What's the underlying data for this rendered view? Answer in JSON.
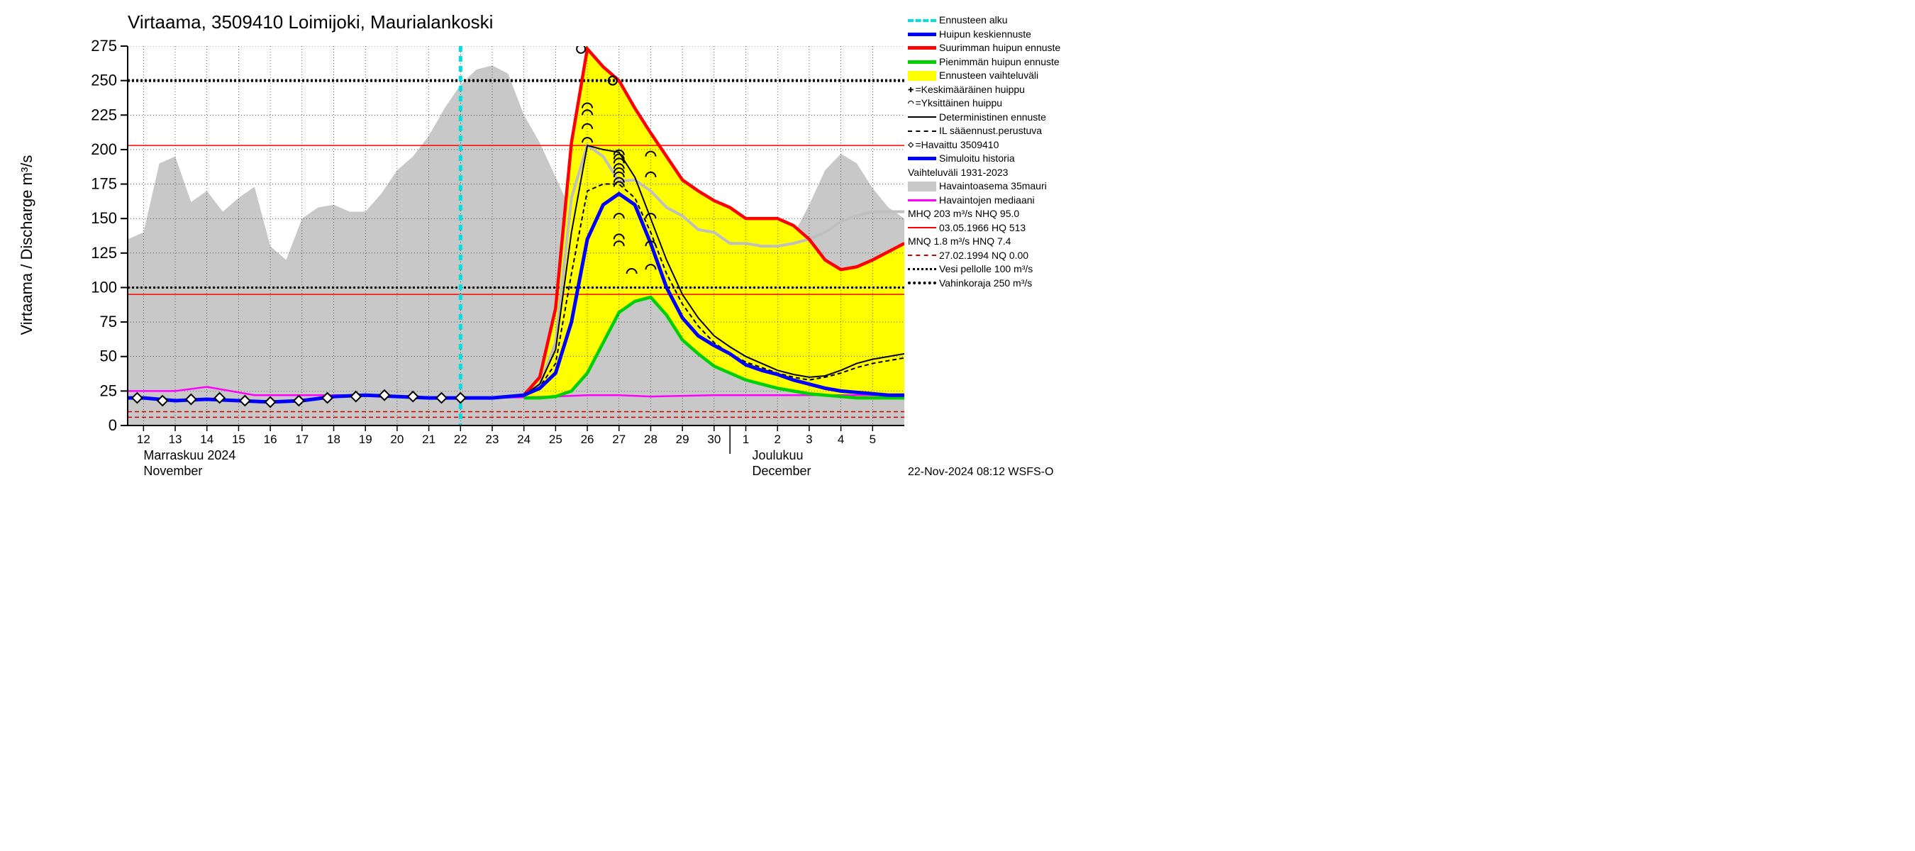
{
  "title": "Virtaama, 3509410 Loimijoki, Maurialankoski",
  "y_axis_label": "Virtaama / Discharge    m³/s",
  "footer": "22-Nov-2024 08:12 WSFS-O",
  "month_labels": {
    "nov_fi": "Marraskuu 2024",
    "nov_en": "November",
    "dec_fi": "Joulukuu",
    "dec_en": "December"
  },
  "colors": {
    "bg": "#ffffff",
    "grey_fill": "#c8c8c8",
    "yellow_fill": "#ffff00",
    "red": "#ff0000",
    "green": "#00d000",
    "blue": "#0000ff",
    "magenta": "#ff00ff",
    "cyan": "#00e0e0",
    "black": "#000000",
    "grey_line": "#bfbfbf",
    "dark_red": "#cc0000"
  },
  "axis": {
    "xlim": [
      11.5,
      36
    ],
    "ylim": [
      0,
      275
    ],
    "ytick_step": 25,
    "xticks": [
      12,
      13,
      14,
      15,
      16,
      17,
      18,
      19,
      20,
      21,
      22,
      23,
      24,
      25,
      26,
      27,
      28,
      29,
      30,
      31,
      32,
      33,
      34,
      35
    ],
    "xtick_labels": [
      "12",
      "13",
      "14",
      "15",
      "16",
      "17",
      "18",
      "19",
      "20",
      "21",
      "22",
      "23",
      "24",
      "25",
      "26",
      "27",
      "28",
      "29",
      "30",
      "1",
      "2",
      "3",
      "4",
      "5"
    ],
    "dec_split": 30.5
  },
  "ref_lines": {
    "mhq": 203,
    "nhq": 95,
    "vesi_pellolle": 100,
    "vahinkoraja": 250,
    "mnq_upper": 10,
    "mnq_lower": 6
  },
  "forecast_start_x": 22,
  "series": {
    "grey_band_upper": [
      [
        11.5,
        135
      ],
      [
        12,
        140
      ],
      [
        12.5,
        190
      ],
      [
        13,
        195
      ],
      [
        13.5,
        162
      ],
      [
        14,
        170
      ],
      [
        14.5,
        155
      ],
      [
        15,
        165
      ],
      [
        15.5,
        173
      ],
      [
        16,
        130
      ],
      [
        16.5,
        120
      ],
      [
        17,
        150
      ],
      [
        17.5,
        158
      ],
      [
        18,
        160
      ],
      [
        18.5,
        155
      ],
      [
        19,
        155
      ],
      [
        19.5,
        168
      ],
      [
        20,
        185
      ],
      [
        20.5,
        195
      ],
      [
        21,
        210
      ],
      [
        21.5,
        230
      ],
      [
        22,
        247
      ],
      [
        22.5,
        258
      ],
      [
        23,
        261
      ],
      [
        23.5,
        255
      ],
      [
        24,
        225
      ],
      [
        24.5,
        205
      ],
      [
        25,
        180
      ],
      [
        25.5,
        155
      ],
      [
        26,
        145
      ],
      [
        26.5,
        150
      ],
      [
        27,
        158
      ],
      [
        27.5,
        165
      ],
      [
        28,
        150
      ],
      [
        28.5,
        150
      ],
      [
        29,
        148
      ],
      [
        29.5,
        145
      ],
      [
        30,
        140
      ],
      [
        30.5,
        130
      ],
      [
        31,
        130
      ],
      [
        31.5,
        132
      ],
      [
        32,
        132
      ],
      [
        32.5,
        138
      ],
      [
        33,
        160
      ],
      [
        33.5,
        185
      ],
      [
        34,
        197
      ],
      [
        34.5,
        190
      ],
      [
        35,
        172
      ],
      [
        35.5,
        158
      ],
      [
        36,
        150
      ]
    ],
    "grey_upper_line": [
      [
        24,
        22
      ],
      [
        24.5,
        30
      ],
      [
        25,
        60
      ],
      [
        25.5,
        165
      ],
      [
        26,
        203
      ],
      [
        26.5,
        195
      ],
      [
        27,
        177
      ],
      [
        27.5,
        178
      ],
      [
        28,
        170
      ],
      [
        28.5,
        158
      ],
      [
        29,
        152
      ],
      [
        29.5,
        142
      ],
      [
        30,
        140
      ],
      [
        30.5,
        132
      ],
      [
        31,
        132
      ],
      [
        31.5,
        130
      ],
      [
        32,
        130
      ],
      [
        32.5,
        132
      ],
      [
        33,
        135
      ],
      [
        33.5,
        140
      ],
      [
        34,
        148
      ],
      [
        34.5,
        152
      ],
      [
        35,
        155
      ],
      [
        35.5,
        155
      ],
      [
        36,
        155
      ]
    ],
    "red_upper": [
      [
        24,
        22
      ],
      [
        24.5,
        35
      ],
      [
        25,
        85
      ],
      [
        25.5,
        205
      ],
      [
        26,
        273
      ],
      [
        26.5,
        260
      ],
      [
        27,
        250
      ],
      [
        27.5,
        230
      ],
      [
        28,
        212
      ],
      [
        28.5,
        195
      ],
      [
        29,
        178
      ],
      [
        29.5,
        170
      ],
      [
        30,
        163
      ],
      [
        30.5,
        158
      ],
      [
        31,
        150
      ],
      [
        31.5,
        150
      ],
      [
        32,
        150
      ],
      [
        32.5,
        145
      ],
      [
        33,
        135
      ],
      [
        33.5,
        120
      ],
      [
        34,
        113
      ],
      [
        34.5,
        115
      ],
      [
        35,
        120
      ],
      [
        35.5,
        126
      ],
      [
        36,
        132
      ]
    ],
    "green_lower": [
      [
        24,
        20
      ],
      [
        24.5,
        20
      ],
      [
        25,
        21
      ],
      [
        25.5,
        25
      ],
      [
        26,
        38
      ],
      [
        26.5,
        60
      ],
      [
        27,
        82
      ],
      [
        27.5,
        90
      ],
      [
        28,
        93
      ],
      [
        28.5,
        80
      ],
      [
        29,
        62
      ],
      [
        29.5,
        52
      ],
      [
        30,
        43
      ],
      [
        30.5,
        38
      ],
      [
        31,
        33
      ],
      [
        31.5,
        30
      ],
      [
        32,
        27
      ],
      [
        32.5,
        25
      ],
      [
        33,
        23
      ],
      [
        33.5,
        22
      ],
      [
        34,
        21
      ],
      [
        34.5,
        20
      ],
      [
        35,
        20
      ],
      [
        35.5,
        20
      ],
      [
        36,
        20
      ]
    ],
    "blue_median": [
      [
        11.5,
        20
      ],
      [
        12,
        20
      ],
      [
        13,
        18
      ],
      [
        14,
        19
      ],
      [
        15,
        18
      ],
      [
        16,
        17
      ],
      [
        17,
        18
      ],
      [
        18,
        21
      ],
      [
        19,
        22
      ],
      [
        20,
        21
      ],
      [
        21,
        20
      ],
      [
        22,
        20
      ],
      [
        23,
        20
      ],
      [
        24,
        22
      ],
      [
        24.5,
        27
      ],
      [
        25,
        38
      ],
      [
        25.5,
        75
      ],
      [
        26,
        135
      ],
      [
        26.5,
        160
      ],
      [
        27,
        168
      ],
      [
        27.5,
        160
      ],
      [
        28,
        132
      ],
      [
        28.5,
        100
      ],
      [
        29,
        78
      ],
      [
        29.5,
        65
      ],
      [
        30,
        58
      ],
      [
        30.5,
        52
      ],
      [
        31,
        44
      ],
      [
        31.5,
        40
      ],
      [
        32,
        37
      ],
      [
        32.5,
        33
      ],
      [
        33,
        30
      ],
      [
        33.5,
        27
      ],
      [
        34,
        25
      ],
      [
        34.5,
        24
      ],
      [
        35,
        23
      ],
      [
        35.5,
        22
      ],
      [
        36,
        22
      ]
    ],
    "black_solid": [
      [
        24,
        22
      ],
      [
        24.5,
        30
      ],
      [
        25,
        55
      ],
      [
        25.5,
        140
      ],
      [
        26,
        203
      ],
      [
        26.5,
        200
      ],
      [
        27,
        198
      ],
      [
        27.5,
        180
      ],
      [
        28,
        150
      ],
      [
        28.5,
        120
      ],
      [
        29,
        95
      ],
      [
        29.5,
        78
      ],
      [
        30,
        65
      ],
      [
        30.5,
        57
      ],
      [
        31,
        50
      ],
      [
        31.5,
        45
      ],
      [
        32,
        40
      ],
      [
        32.5,
        37
      ],
      [
        33,
        35
      ],
      [
        33.5,
        36
      ],
      [
        34,
        40
      ],
      [
        34.5,
        45
      ],
      [
        35,
        48
      ],
      [
        35.5,
        50
      ],
      [
        36,
        52
      ]
    ],
    "black_dash": [
      [
        24,
        22
      ],
      [
        24.5,
        28
      ],
      [
        25,
        45
      ],
      [
        25.5,
        110
      ],
      [
        26,
        170
      ],
      [
        26.5,
        175
      ],
      [
        27,
        175
      ],
      [
        27.5,
        165
      ],
      [
        28,
        140
      ],
      [
        28.5,
        110
      ],
      [
        29,
        88
      ],
      [
        29.5,
        72
      ],
      [
        30,
        60
      ],
      [
        30.5,
        52
      ],
      [
        31,
        46
      ],
      [
        31.5,
        42
      ],
      [
        32,
        38
      ],
      [
        32.5,
        35
      ],
      [
        33,
        33
      ],
      [
        33.5,
        35
      ],
      [
        34,
        38
      ],
      [
        34.5,
        42
      ],
      [
        35,
        45
      ],
      [
        35.5,
        47
      ],
      [
        36,
        49
      ]
    ],
    "magenta": [
      [
        11.5,
        25
      ],
      [
        13,
        25
      ],
      [
        14,
        28
      ],
      [
        15.5,
        22
      ],
      [
        17,
        22
      ],
      [
        19,
        22
      ],
      [
        21,
        20
      ],
      [
        23,
        20
      ],
      [
        25,
        21
      ],
      [
        26,
        22
      ],
      [
        27,
        22
      ],
      [
        28,
        21
      ],
      [
        30,
        22
      ],
      [
        32,
        22
      ],
      [
        34,
        22
      ],
      [
        36,
        22
      ]
    ],
    "diamonds_x": [
      11.8,
      12.6,
      13.5,
      14.4,
      15.2,
      16.0,
      16.9,
      17.8,
      18.7,
      19.6,
      20.5,
      21.4,
      22.0
    ],
    "diamonds_y": [
      20,
      18,
      19,
      20,
      18,
      17,
      18,
      20,
      21,
      22,
      21,
      20,
      20
    ],
    "peak_circles": [
      [
        25.8,
        273
      ],
      [
        26.8,
        250
      ]
    ],
    "arcs": [
      [
        26,
        205
      ],
      [
        26,
        215
      ],
      [
        26,
        225
      ],
      [
        26,
        230
      ],
      [
        27,
        173
      ],
      [
        27,
        176
      ],
      [
        27,
        180
      ],
      [
        27,
        183
      ],
      [
        27,
        186
      ],
      [
        27,
        190
      ],
      [
        27,
        193
      ],
      [
        27,
        196
      ],
      [
        27,
        150
      ],
      [
        27,
        135
      ],
      [
        27,
        130
      ],
      [
        27.4,
        110
      ],
      [
        28,
        195
      ],
      [
        28,
        180
      ],
      [
        28,
        150
      ],
      [
        28,
        130
      ],
      [
        28,
        113
      ]
    ]
  },
  "legend": {
    "items": [
      {
        "label": "Ennusteen alku",
        "type": "dash",
        "color": "#00e0e0",
        "width": 4
      },
      {
        "label": "Huipun keskiennuste",
        "type": "solid",
        "color": "#0000ff",
        "width": 5
      },
      {
        "label": "Suurimman huipun ennuste",
        "type": "solid",
        "color": "#ff0000",
        "width": 5
      },
      {
        "label": "Pienimmän huipun ennuste",
        "type": "solid",
        "color": "#00d000",
        "width": 5
      },
      {
        "label": "Ennusteen vaihteluväli",
        "type": "fill",
        "color": "#ffff00"
      },
      {
        "label": "=Keskimääräinen huippu",
        "prefix": "✚",
        "type": "text",
        "sub": ""
      },
      {
        "label": "=Yksittäinen huippu",
        "prefix": "⌒",
        "type": "text"
      },
      {
        "label": "Deterministinen ennuste",
        "type": "solid",
        "color": "#000000",
        "width": 2
      },
      {
        "label": "IL sääennust.perustuva",
        "type": "dash",
        "color": "#000000",
        "width": 2
      },
      {
        "label": "=Havaittu 3509410",
        "prefix": "◇",
        "type": "text"
      },
      {
        "label": "Simuloitu historia",
        "type": "solid",
        "color": "#0000ff",
        "width": 5
      },
      {
        "label": "Vaihteluväli 1931-2023",
        "type": "text"
      },
      {
        "label": " Havaintoasema 35mauri",
        "type": "fill",
        "color": "#c8c8c8"
      },
      {
        "label": "Havaintojen mediaani",
        "type": "solid",
        "color": "#ff00ff",
        "width": 3
      },
      {
        "label": "MHQ  203 m³/s NHQ 95.0",
        "type": "text"
      },
      {
        "label": "03.05.1966 HQ  513",
        "type": "solid",
        "color": "#ff0000",
        "width": 2
      },
      {
        "label": "MNQ  1.8 m³/s HNQ   7.4",
        "type": "text"
      },
      {
        "label": "27.02.1994 NQ 0.00",
        "type": "dash",
        "color": "#cc0000",
        "width": 2
      },
      {
        "label": "Vesi pellolle 100 m³/s",
        "type": "dot",
        "color": "#000000",
        "width": 3
      },
      {
        "label": "Vahinkoraja 250 m³/s",
        "type": "dot",
        "color": "#000000",
        "width": 4
      }
    ]
  }
}
